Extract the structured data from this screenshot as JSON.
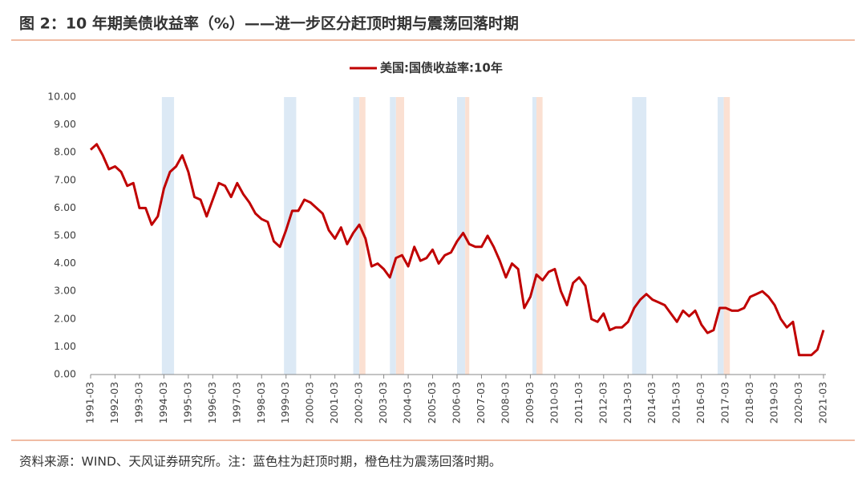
{
  "title": "图 2：10 年期美债收益率（%）——进一步区分赶顶时期与震荡回落时期",
  "source": "资料来源：WIND、天风证券研究所。注：蓝色柱为赶顶时期，橙色柱为震荡回落时期。",
  "chart_data": {
    "type": "line",
    "legend": "top",
    "x": [
      "1991-03",
      "1991-06",
      "1991-09",
      "1991-12",
      "1992-03",
      "1992-06",
      "1992-09",
      "1992-12",
      "1993-03",
      "1993-06",
      "1993-09",
      "1993-12",
      "1994-03",
      "1994-06",
      "1994-09",
      "1994-12",
      "1995-03",
      "1995-06",
      "1995-09",
      "1995-12",
      "1996-03",
      "1996-06",
      "1996-09",
      "1996-12",
      "1997-03",
      "1997-06",
      "1997-09",
      "1997-12",
      "1998-03",
      "1998-06",
      "1998-09",
      "1998-12",
      "1999-03",
      "1999-06",
      "1999-09",
      "1999-12",
      "2000-03",
      "2000-06",
      "2000-09",
      "2000-12",
      "2001-03",
      "2001-06",
      "2001-09",
      "2001-12",
      "2002-03",
      "2002-06",
      "2002-09",
      "2002-12",
      "2003-03",
      "2003-06",
      "2003-09",
      "2003-12",
      "2004-03",
      "2004-06",
      "2004-09",
      "2004-12",
      "2005-03",
      "2005-06",
      "2005-09",
      "2005-12",
      "2006-03",
      "2006-06",
      "2006-09",
      "2006-12",
      "2007-03",
      "2007-06",
      "2007-09",
      "2007-12",
      "2008-03",
      "2008-06",
      "2008-09",
      "2008-12",
      "2009-03",
      "2009-06",
      "2009-09",
      "2009-12",
      "2010-03",
      "2010-06",
      "2010-09",
      "2010-12",
      "2011-03",
      "2011-06",
      "2011-09",
      "2011-12",
      "2012-03",
      "2012-06",
      "2012-09",
      "2012-12",
      "2013-03",
      "2013-06",
      "2013-09",
      "2013-12",
      "2014-03",
      "2014-06",
      "2014-09",
      "2014-12",
      "2015-03",
      "2015-06",
      "2015-09",
      "2015-12",
      "2016-03",
      "2016-06",
      "2016-09",
      "2016-12",
      "2017-03",
      "2017-06",
      "2017-09",
      "2017-12",
      "2018-03",
      "2018-06",
      "2018-09",
      "2018-12",
      "2019-03",
      "2019-06",
      "2019-09",
      "2019-12",
      "2020-03",
      "2020-06",
      "2020-09",
      "2020-12",
      "2021-03"
    ],
    "series": [
      {
        "name": "美国:国债收益率:10年",
        "color": "#c00000",
        "values": [
          8.1,
          8.3,
          7.9,
          7.4,
          7.5,
          7.3,
          6.8,
          6.9,
          6.0,
          6.0,
          5.4,
          5.7,
          6.7,
          7.3,
          7.5,
          7.9,
          7.3,
          6.4,
          6.3,
          5.7,
          6.3,
          6.9,
          6.8,
          6.4,
          6.9,
          6.5,
          6.2,
          5.8,
          5.6,
          5.5,
          4.8,
          4.6,
          5.2,
          5.9,
          5.9,
          6.3,
          6.2,
          6.0,
          5.8,
          5.2,
          4.9,
          5.3,
          4.7,
          5.1,
          5.4,
          4.9,
          3.9,
          4.0,
          3.8,
          3.5,
          4.2,
          4.3,
          3.9,
          4.6,
          4.1,
          4.2,
          4.5,
          4.0,
          4.3,
          4.4,
          4.8,
          5.1,
          4.7,
          4.6,
          4.6,
          5.0,
          4.6,
          4.1,
          3.5,
          4.0,
          3.8,
          2.4,
          2.8,
          3.6,
          3.4,
          3.7,
          3.8,
          3.0,
          2.5,
          3.3,
          3.5,
          3.2,
          2.0,
          1.9,
          2.2,
          1.6,
          1.7,
          1.7,
          1.9,
          2.4,
          2.7,
          2.9,
          2.7,
          2.6,
          2.5,
          2.2,
          1.9,
          2.3,
          2.1,
          2.3,
          1.8,
          1.5,
          1.6,
          2.4,
          2.4,
          2.3,
          2.3,
          2.4,
          2.8,
          2.9,
          3.0,
          2.8,
          2.5,
          2.0,
          1.7,
          1.9,
          0.7,
          0.7,
          0.7,
          0.9,
          1.6
        ]
      }
    ],
    "xlim": [
      "1991-03",
      "2021-03"
    ],
    "xticks": [
      "1991-03",
      "1992-03",
      "1993-03",
      "1994-03",
      "1995-03",
      "1996-03",
      "1997-03",
      "1998-03",
      "1999-03",
      "2000-03",
      "2001-03",
      "2002-03",
      "2003-03",
      "2004-03",
      "2005-03",
      "2006-03",
      "2007-03",
      "2008-03",
      "2009-03",
      "2010-03",
      "2011-03",
      "2012-03",
      "2013-03",
      "2014-03",
      "2015-03",
      "2016-03",
      "2017-03",
      "2018-03",
      "2019-03",
      "2020-03",
      "2021-03"
    ],
    "ylim": [
      0,
      10
    ],
    "yticks": [
      {
        "value": 0,
        "label": "0.00"
      },
      {
        "value": 1,
        "label": "1.00"
      },
      {
        "value": 2,
        "label": "2.00"
      },
      {
        "value": 3,
        "label": "3.00"
      },
      {
        "value": 4,
        "label": "4.00"
      },
      {
        "value": 5,
        "label": "5.00"
      },
      {
        "value": 6,
        "label": "6.00"
      },
      {
        "value": 7,
        "label": "7.00"
      },
      {
        "value": 8,
        "label": "8.00"
      },
      {
        "value": 9,
        "label": "9.00"
      },
      {
        "value": 10,
        "label": "10.00"
      }
    ],
    "grid": false,
    "bands": [
      {
        "start": "1994-02",
        "end": "1994-08",
        "color": "#dce9f5"
      },
      {
        "start": "1999-02",
        "end": "1999-08",
        "color": "#dce9f5"
      },
      {
        "start": "2001-12",
        "end": "2002-03",
        "color": "#dce9f5"
      },
      {
        "start": "2002-03",
        "end": "2002-06",
        "color": "#fbe0d2"
      },
      {
        "start": "2003-06",
        "end": "2003-09",
        "color": "#dce9f5"
      },
      {
        "start": "2003-09",
        "end": "2004-01",
        "color": "#fbe0d2"
      },
      {
        "start": "2006-03",
        "end": "2006-07",
        "color": "#dce9f5"
      },
      {
        "start": "2006-07",
        "end": "2006-09",
        "color": "#fbe0d2"
      },
      {
        "start": "2009-04",
        "end": "2009-06",
        "color": "#dce9f5"
      },
      {
        "start": "2009-06",
        "end": "2009-09",
        "color": "#fbe0d2"
      },
      {
        "start": "2013-05",
        "end": "2013-12",
        "color": "#dce9f5"
      },
      {
        "start": "2016-11",
        "end": "2017-02",
        "color": "#dce9f5"
      },
      {
        "start": "2017-02",
        "end": "2017-05",
        "color": "#fbe0d2"
      }
    ]
  }
}
